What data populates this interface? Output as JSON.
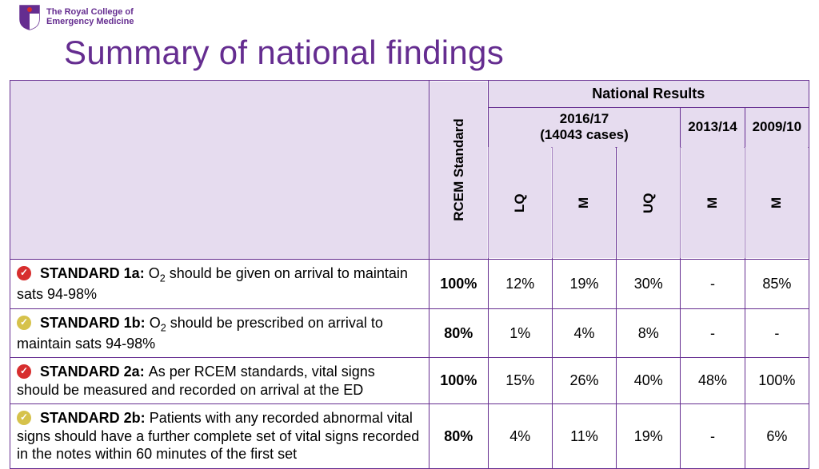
{
  "org": {
    "line1": "The Royal College of",
    "line2": "Emergency Medicine"
  },
  "title": "Summary of national findings",
  "colors": {
    "accent": "#652d90",
    "header_bg": "#e6dcef",
    "badge_red": "#d72e2e",
    "badge_yellow": "#d6c24b"
  },
  "table": {
    "head": {
      "rcem": "RCEM Standard",
      "national": "National Results",
      "y2016": "2016/17",
      "y2016_sub": "(14043 cases)",
      "y2013": "2013/14",
      "y2009": "2009/10",
      "lq": "LQ",
      "m": "M",
      "uq": "UQ"
    },
    "rows": [
      {
        "badge": "red",
        "label": "STANDARD 1a:",
        "text_pre": "O",
        "text_sub": "2",
        "text_post": " should be given on arrival to maintain sats 94-98%",
        "std": "100%",
        "lq": "12%",
        "m": "19%",
        "uq": "30%",
        "m13": "-",
        "m09": "85%"
      },
      {
        "badge": "yellow",
        "label": "STANDARD 1b:",
        "text_pre": "O",
        "text_sub": "2",
        "text_post": " should be prescribed on arrival to maintain sats 94-98%",
        "std": "80%",
        "lq": "1%",
        "m": "4%",
        "uq": "8%",
        "m13": "-",
        "m09": "-"
      },
      {
        "badge": "red",
        "label": "STANDARD 2a:",
        "text_pre": "",
        "text_sub": "",
        "text_post": "As per RCEM standards, vital signs should be measured and recorded on arrival at the ED",
        "std": "100%",
        "lq": "15%",
        "m": "26%",
        "uq": "40%",
        "m13": "48%",
        "m09": "100%"
      },
      {
        "badge": "yellow",
        "label": "STANDARD 2b:",
        "text_pre": "",
        "text_sub": "",
        "text_post": "Patients with any recorded abnormal vital signs should have a further complete set of vital signs recorded in the notes within 60 minutes of the first set",
        "std": "80%",
        "lq": "4%",
        "m": "11%",
        "uq": "19%",
        "m13": "-",
        "m09": "6%"
      }
    ]
  }
}
